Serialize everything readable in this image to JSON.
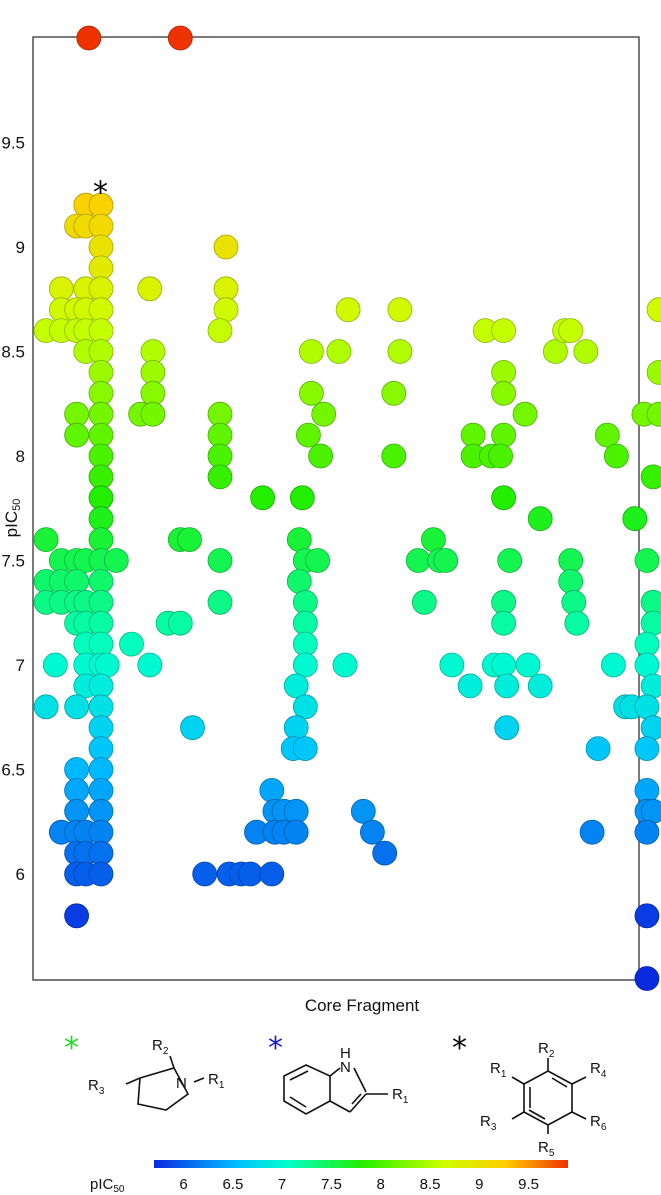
{
  "chart_data": {
    "type": "scatter",
    "xlabel": "Core Fragment",
    "ylabel": "pIC",
    "ylabel_sub": "50",
    "ylim": [
      5.45,
      10.2
    ],
    "yticks": [
      "6",
      "6.5",
      "7",
      "7.5",
      "8",
      "8.5",
      "9",
      "9.5"
    ],
    "grid": false,
    "color_scale": {
      "label": "pIC",
      "label_sub": "50",
      "min": 5.7,
      "max": 9.9,
      "ticks": [
        "6",
        "6.5",
        "7",
        "7.5",
        "8",
        "8.5",
        "9",
        "9.5"
      ]
    },
    "markers": [
      {
        "core": 2,
        "value": 9.3,
        "color": "#000000"
      },
      {
        "core": 2,
        "value": 10.25,
        "color": "#22dd22"
      },
      {
        "core": 5,
        "value": 10.25,
        "color": "#1a1acc"
      }
    ],
    "points": [
      {
        "x": 1.6,
        "y": 10.0,
        "v": 10.0
      },
      {
        "x": 4.6,
        "y": 10.0,
        "v": 10.0
      },
      {
        "x": 1.5,
        "y": 9.2,
        "v": 9.2
      },
      {
        "x": 2.0,
        "y": 9.2,
        "v": 9.2
      },
      {
        "x": 1.2,
        "y": 9.1,
        "v": 9.1
      },
      {
        "x": 1.5,
        "y": 9.1,
        "v": 9.1
      },
      {
        "x": 2.0,
        "y": 9.1,
        "v": 9.1
      },
      {
        "x": 2.0,
        "y": 9.0,
        "v": 9.0
      },
      {
        "x": 2.0,
        "y": 8.9,
        "v": 8.9
      },
      {
        "x": 0.7,
        "y": 8.8,
        "v": 8.8
      },
      {
        "x": 1.5,
        "y": 8.8,
        "v": 8.8
      },
      {
        "x": 2.0,
        "y": 8.8,
        "v": 8.8
      },
      {
        "x": 0.7,
        "y": 8.7,
        "v": 8.7
      },
      {
        "x": 1.2,
        "y": 8.7,
        "v": 8.7
      },
      {
        "x": 1.5,
        "y": 8.7,
        "v": 8.7
      },
      {
        "x": 2.0,
        "y": 8.7,
        "v": 8.7
      },
      {
        "x": 0.2,
        "y": 8.6,
        "v": 8.6
      },
      {
        "x": 0.7,
        "y": 8.6,
        "v": 8.6
      },
      {
        "x": 1.2,
        "y": 8.6,
        "v": 8.6
      },
      {
        "x": 1.5,
        "y": 8.6,
        "v": 8.6
      },
      {
        "x": 2.0,
        "y": 8.6,
        "v": 8.6
      },
      {
        "x": 1.5,
        "y": 8.5,
        "v": 8.5
      },
      {
        "x": 2.0,
        "y": 8.5,
        "v": 8.5
      },
      {
        "x": 2.0,
        "y": 8.4,
        "v": 8.4
      },
      {
        "x": 2.0,
        "y": 8.3,
        "v": 8.3
      },
      {
        "x": 1.2,
        "y": 8.2,
        "v": 8.2
      },
      {
        "x": 2.0,
        "y": 8.2,
        "v": 8.2
      },
      {
        "x": 1.2,
        "y": 8.1,
        "v": 8.1
      },
      {
        "x": 2.0,
        "y": 8.1,
        "v": 8.1
      },
      {
        "x": 2.0,
        "y": 8.0,
        "v": 8.0
      },
      {
        "x": 2.0,
        "y": 7.9,
        "v": 7.9
      },
      {
        "x": 2.0,
        "y": 7.8,
        "v": 7.8
      },
      {
        "x": 2.0,
        "y": 7.7,
        "v": 7.7
      },
      {
        "x": 2.0,
        "y": 7.6,
        "v": 7.6
      },
      {
        "x": 0.2,
        "y": 7.6,
        "v": 7.6
      },
      {
        "x": 0.7,
        "y": 7.5,
        "v": 7.5
      },
      {
        "x": 1.2,
        "y": 7.5,
        "v": 7.5
      },
      {
        "x": 1.5,
        "y": 7.5,
        "v": 7.5
      },
      {
        "x": 2.0,
        "y": 7.5,
        "v": 7.5
      },
      {
        "x": 2.5,
        "y": 7.5,
        "v": 7.5
      },
      {
        "x": 0.2,
        "y": 7.4,
        "v": 7.4
      },
      {
        "x": 0.7,
        "y": 7.4,
        "v": 7.4
      },
      {
        "x": 1.2,
        "y": 7.4,
        "v": 7.4
      },
      {
        "x": 2.0,
        "y": 7.4,
        "v": 7.4
      },
      {
        "x": 0.2,
        "y": 7.3,
        "v": 7.3
      },
      {
        "x": 0.7,
        "y": 7.3,
        "v": 7.3
      },
      {
        "x": 1.2,
        "y": 7.3,
        "v": 7.3
      },
      {
        "x": 1.5,
        "y": 7.3,
        "v": 7.3
      },
      {
        "x": 2.0,
        "y": 7.3,
        "v": 7.3
      },
      {
        "x": 1.2,
        "y": 7.2,
        "v": 7.2
      },
      {
        "x": 1.5,
        "y": 7.2,
        "v": 7.2
      },
      {
        "x": 2.0,
        "y": 7.2,
        "v": 7.2
      },
      {
        "x": 1.5,
        "y": 7.1,
        "v": 7.1
      },
      {
        "x": 2.0,
        "y": 7.1,
        "v": 7.1
      },
      {
        "x": 0.5,
        "y": 7.0,
        "v": 7.0
      },
      {
        "x": 1.5,
        "y": 7.0,
        "v": 7.0
      },
      {
        "x": 2.0,
        "y": 7.0,
        "v": 7.0
      },
      {
        "x": 2.2,
        "y": 7.0,
        "v": 7.0
      },
      {
        "x": 1.5,
        "y": 6.9,
        "v": 6.9
      },
      {
        "x": 2.0,
        "y": 6.9,
        "v": 6.9
      },
      {
        "x": 0.2,
        "y": 6.8,
        "v": 6.8
      },
      {
        "x": 1.2,
        "y": 6.8,
        "v": 6.8
      },
      {
        "x": 2.0,
        "y": 6.8,
        "v": 6.8
      },
      {
        "x": 2.0,
        "y": 6.7,
        "v": 6.7
      },
      {
        "x": 2.0,
        "y": 6.6,
        "v": 6.6
      },
      {
        "x": 1.2,
        "y": 6.5,
        "v": 6.5
      },
      {
        "x": 2.0,
        "y": 6.5,
        "v": 6.5
      },
      {
        "x": 1.2,
        "y": 6.4,
        "v": 6.4
      },
      {
        "x": 2.0,
        "y": 6.4,
        "v": 6.4
      },
      {
        "x": 1.2,
        "y": 6.3,
        "v": 6.3
      },
      {
        "x": 2.0,
        "y": 6.3,
        "v": 6.3
      },
      {
        "x": 0.7,
        "y": 6.2,
        "v": 6.2
      },
      {
        "x": 1.2,
        "y": 6.2,
        "v": 6.2
      },
      {
        "x": 1.5,
        "y": 6.2,
        "v": 6.2
      },
      {
        "x": 2.0,
        "y": 6.2,
        "v": 6.2
      },
      {
        "x": 1.2,
        "y": 6.1,
        "v": 6.1
      },
      {
        "x": 1.5,
        "y": 6.1,
        "v": 6.1
      },
      {
        "x": 2.0,
        "y": 6.1,
        "v": 6.1
      },
      {
        "x": 1.2,
        "y": 6.0,
        "v": 6.0
      },
      {
        "x": 1.5,
        "y": 6.0,
        "v": 6.0
      },
      {
        "x": 2.0,
        "y": 6.0,
        "v": 6.0
      },
      {
        "x": 1.2,
        "y": 5.8,
        "v": 5.8
      },
      {
        "x": 3.6,
        "y": 8.8,
        "v": 8.8
      },
      {
        "x": 3.7,
        "y": 8.5,
        "v": 8.5
      },
      {
        "x": 3.7,
        "y": 8.4,
        "v": 8.4
      },
      {
        "x": 3.7,
        "y": 8.3,
        "v": 8.3
      },
      {
        "x": 3.3,
        "y": 8.2,
        "v": 8.2
      },
      {
        "x": 3.7,
        "y": 8.2,
        "v": 8.2
      },
      {
        "x": 3.0,
        "y": 7.1,
        "v": 7.1
      },
      {
        "x": 3.6,
        "y": 7.0,
        "v": 7.0
      },
      {
        "x": 4.6,
        "y": 7.6,
        "v": 7.6
      },
      {
        "x": 4.9,
        "y": 7.6,
        "v": 7.6
      },
      {
        "x": 4.2,
        "y": 7.2,
        "v": 7.2
      },
      {
        "x": 4.6,
        "y": 7.2,
        "v": 7.2
      },
      {
        "x": 5.0,
        "y": 6.7,
        "v": 6.7
      },
      {
        "x": 6.1,
        "y": 9.0,
        "v": 9.0
      },
      {
        "x": 6.1,
        "y": 8.8,
        "v": 8.8
      },
      {
        "x": 6.1,
        "y": 8.7,
        "v": 8.7
      },
      {
        "x": 5.9,
        "y": 8.6,
        "v": 8.6
      },
      {
        "x": 5.9,
        "y": 8.2,
        "v": 8.2
      },
      {
        "x": 5.9,
        "y": 8.1,
        "v": 8.1
      },
      {
        "x": 5.9,
        "y": 8.0,
        "v": 8.0
      },
      {
        "x": 5.9,
        "y": 7.9,
        "v": 7.9
      },
      {
        "x": 5.9,
        "y": 7.5,
        "v": 7.5
      },
      {
        "x": 5.9,
        "y": 7.3,
        "v": 7.3
      },
      {
        "x": 7.3,
        "y": 7.8,
        "v": 7.8
      },
      {
        "x": 7.6,
        "y": 6.4,
        "v": 6.4
      },
      {
        "x": 7.1,
        "y": 6.2,
        "v": 6.2
      },
      {
        "x": 5.4,
        "y": 6.0,
        "v": 6.0
      },
      {
        "x": 6.2,
        "y": 6.0,
        "v": 6.0
      },
      {
        "x": 6.6,
        "y": 6.0,
        "v": 6.0
      },
      {
        "x": 6.9,
        "y": 6.0,
        "v": 6.0
      },
      {
        "x": 7.6,
        "y": 6.0,
        "v": 6.0
      },
      {
        "x": 8.9,
        "y": 8.5,
        "v": 8.5
      },
      {
        "x": 8.9,
        "y": 8.3,
        "v": 8.3
      },
      {
        "x": 8.8,
        "y": 8.1,
        "v": 8.1
      },
      {
        "x": 8.6,
        "y": 7.8,
        "v": 7.8
      },
      {
        "x": 8.5,
        "y": 7.6,
        "v": 7.6
      },
      {
        "x": 8.7,
        "y": 7.5,
        "v": 7.5
      },
      {
        "x": 9.1,
        "y": 7.5,
        "v": 7.5
      },
      {
        "x": 8.5,
        "y": 7.4,
        "v": 7.4
      },
      {
        "x": 8.7,
        "y": 7.3,
        "v": 7.3
      },
      {
        "x": 8.7,
        "y": 7.2,
        "v": 7.2
      },
      {
        "x": 8.7,
        "y": 7.1,
        "v": 7.1
      },
      {
        "x": 8.7,
        "y": 7.0,
        "v": 7.0
      },
      {
        "x": 8.4,
        "y": 6.9,
        "v": 6.9
      },
      {
        "x": 8.7,
        "y": 6.8,
        "v": 6.8
      },
      {
        "x": 8.4,
        "y": 6.7,
        "v": 6.7
      },
      {
        "x": 8.3,
        "y": 6.6,
        "v": 6.6
      },
      {
        "x": 8.7,
        "y": 6.6,
        "v": 6.6
      },
      {
        "x": 7.7,
        "y": 6.3,
        "v": 6.3
      },
      {
        "x": 8.0,
        "y": 6.3,
        "v": 6.3
      },
      {
        "x": 8.4,
        "y": 6.3,
        "v": 6.3
      },
      {
        "x": 7.7,
        "y": 6.2,
        "v": 6.2
      },
      {
        "x": 8.0,
        "y": 6.2,
        "v": 6.2
      },
      {
        "x": 8.4,
        "y": 6.2,
        "v": 6.2
      },
      {
        "x": 10.1,
        "y": 8.7,
        "v": 8.7
      },
      {
        "x": 9.8,
        "y": 8.5,
        "v": 8.5
      },
      {
        "x": 9.3,
        "y": 8.2,
        "v": 8.2
      },
      {
        "x": 9.2,
        "y": 8.0,
        "v": 8.0
      },
      {
        "x": 10.0,
        "y": 7.0,
        "v": 7.0
      },
      {
        "x": 10.6,
        "y": 6.3,
        "v": 6.3
      },
      {
        "x": 10.9,
        "y": 6.2,
        "v": 6.2
      },
      {
        "x": 11.3,
        "y": 6.1,
        "v": 6.1
      },
      {
        "x": 11.8,
        "y": 8.7,
        "v": 8.7
      },
      {
        "x": 11.8,
        "y": 8.5,
        "v": 8.5
      },
      {
        "x": 11.6,
        "y": 8.3,
        "v": 8.3
      },
      {
        "x": 11.6,
        "y": 8.0,
        "v": 8.0
      },
      {
        "x": 12.9,
        "y": 7.6,
        "v": 7.6
      },
      {
        "x": 12.4,
        "y": 7.5,
        "v": 7.5
      },
      {
        "x": 13.1,
        "y": 7.5,
        "v": 7.5
      },
      {
        "x": 13.3,
        "y": 7.5,
        "v": 7.5
      },
      {
        "x": 12.6,
        "y": 7.3,
        "v": 7.3
      },
      {
        "x": 13.5,
        "y": 7.0,
        "v": 7.0
      },
      {
        "x": 14.1,
        "y": 6.9,
        "v": 6.9
      },
      {
        "x": 14.6,
        "y": 8.6,
        "v": 8.6
      },
      {
        "x": 15.2,
        "y": 8.6,
        "v": 8.6
      },
      {
        "x": 15.2,
        "y": 8.4,
        "v": 8.4
      },
      {
        "x": 15.2,
        "y": 8.3,
        "v": 8.3
      },
      {
        "x": 14.2,
        "y": 8.1,
        "v": 8.1
      },
      {
        "x": 15.2,
        "y": 8.1,
        "v": 8.1
      },
      {
        "x": 14.2,
        "y": 8.0,
        "v": 8.0
      },
      {
        "x": 14.8,
        "y": 8.0,
        "v": 8.0
      },
      {
        "x": 15.1,
        "y": 8.0,
        "v": 8.0
      },
      {
        "x": 15.2,
        "y": 7.8,
        "v": 7.8
      },
      {
        "x": 15.4,
        "y": 7.5,
        "v": 7.5
      },
      {
        "x": 15.2,
        "y": 7.3,
        "v": 7.3
      },
      {
        "x": 15.2,
        "y": 7.2,
        "v": 7.2
      },
      {
        "x": 14.9,
        "y": 7.0,
        "v": 7.0
      },
      {
        "x": 15.2,
        "y": 7.0,
        "v": 7.0
      },
      {
        "x": 15.3,
        "y": 6.9,
        "v": 6.9
      },
      {
        "x": 15.3,
        "y": 6.7,
        "v": 6.7
      },
      {
        "x": 15.9,
        "y": 8.2,
        "v": 8.2
      },
      {
        "x": 16.4,
        "y": 7.7,
        "v": 7.7
      },
      {
        "x": 16.0,
        "y": 7.0,
        "v": 7.0
      },
      {
        "x": 16.4,
        "y": 6.9,
        "v": 6.9
      },
      {
        "x": 16.9,
        "y": 8.5,
        "v": 8.5
      },
      {
        "x": 17.2,
        "y": 8.6,
        "v": 8.6
      },
      {
        "x": 17.4,
        "y": 8.6,
        "v": 8.6
      },
      {
        "x": 17.4,
        "y": 7.5,
        "v": 7.5
      },
      {
        "x": 17.4,
        "y": 7.4,
        "v": 7.4
      },
      {
        "x": 17.5,
        "y": 7.3,
        "v": 7.3
      },
      {
        "x": 17.6,
        "y": 7.2,
        "v": 7.2
      },
      {
        "x": 17.9,
        "y": 8.5,
        "v": 8.5
      },
      {
        "x": 18.3,
        "y": 6.6,
        "v": 6.6
      },
      {
        "x": 18.1,
        "y": 6.2,
        "v": 6.2
      },
      {
        "x": 18.6,
        "y": 8.1,
        "v": 8.1
      },
      {
        "x": 18.9,
        "y": 8.0,
        "v": 8.0
      },
      {
        "x": 18.8,
        "y": 7.0,
        "v": 7.0
      },
      {
        "x": 19.2,
        "y": 6.8,
        "v": 6.8
      },
      {
        "x": 19.4,
        "y": 6.8,
        "v": 6.8
      },
      {
        "x": 19.5,
        "y": 7.7,
        "v": 7.7
      },
      {
        "x": 19.8,
        "y": 8.2,
        "v": 8.2
      },
      {
        "x": 20.3,
        "y": 8.2,
        "v": 8.2
      },
      {
        "x": 20.1,
        "y": 7.9,
        "v": 7.9
      },
      {
        "x": 20.3,
        "y": 8.4,
        "v": 8.4
      },
      {
        "x": 20.3,
        "y": 8.7,
        "v": 8.7
      },
      {
        "x": 19.9,
        "y": 7.5,
        "v": 7.5
      },
      {
        "x": 20.1,
        "y": 7.3,
        "v": 7.3
      },
      {
        "x": 20.1,
        "y": 7.2,
        "v": 7.2
      },
      {
        "x": 19.9,
        "y": 7.1,
        "v": 7.1
      },
      {
        "x": 19.9,
        "y": 7.0,
        "v": 7.0
      },
      {
        "x": 20.1,
        "y": 6.9,
        "v": 6.9
      },
      {
        "x": 19.9,
        "y": 6.8,
        "v": 6.8
      },
      {
        "x": 20.1,
        "y": 6.7,
        "v": 6.7
      },
      {
        "x": 19.9,
        "y": 6.6,
        "v": 6.6
      },
      {
        "x": 19.9,
        "y": 6.4,
        "v": 6.4
      },
      {
        "x": 19.9,
        "y": 6.3,
        "v": 6.3
      },
      {
        "x": 20.1,
        "y": 6.3,
        "v": 6.3
      },
      {
        "x": 19.9,
        "y": 6.2,
        "v": 6.2
      },
      {
        "x": 19.9,
        "y": 5.8,
        "v": 5.8
      },
      {
        "x": 19.9,
        "y": 5.5,
        "v": 5.5
      }
    ]
  },
  "structures": {
    "pyrrolidine": {
      "star_color": "#22dd22",
      "labels": [
        "R",
        "2",
        "R",
        "3",
        "N",
        "R",
        "1"
      ]
    },
    "indole": {
      "star_color": "#1a1acc",
      "labels": [
        "H",
        "N",
        "R",
        "1"
      ]
    },
    "benzene": {
      "star_color": "#000000",
      "labels": [
        "R",
        "2",
        "R",
        "1",
        "R",
        "4",
        "R",
        "3",
        "R",
        "6",
        "R",
        "5"
      ]
    }
  },
  "star_glyph": "*"
}
